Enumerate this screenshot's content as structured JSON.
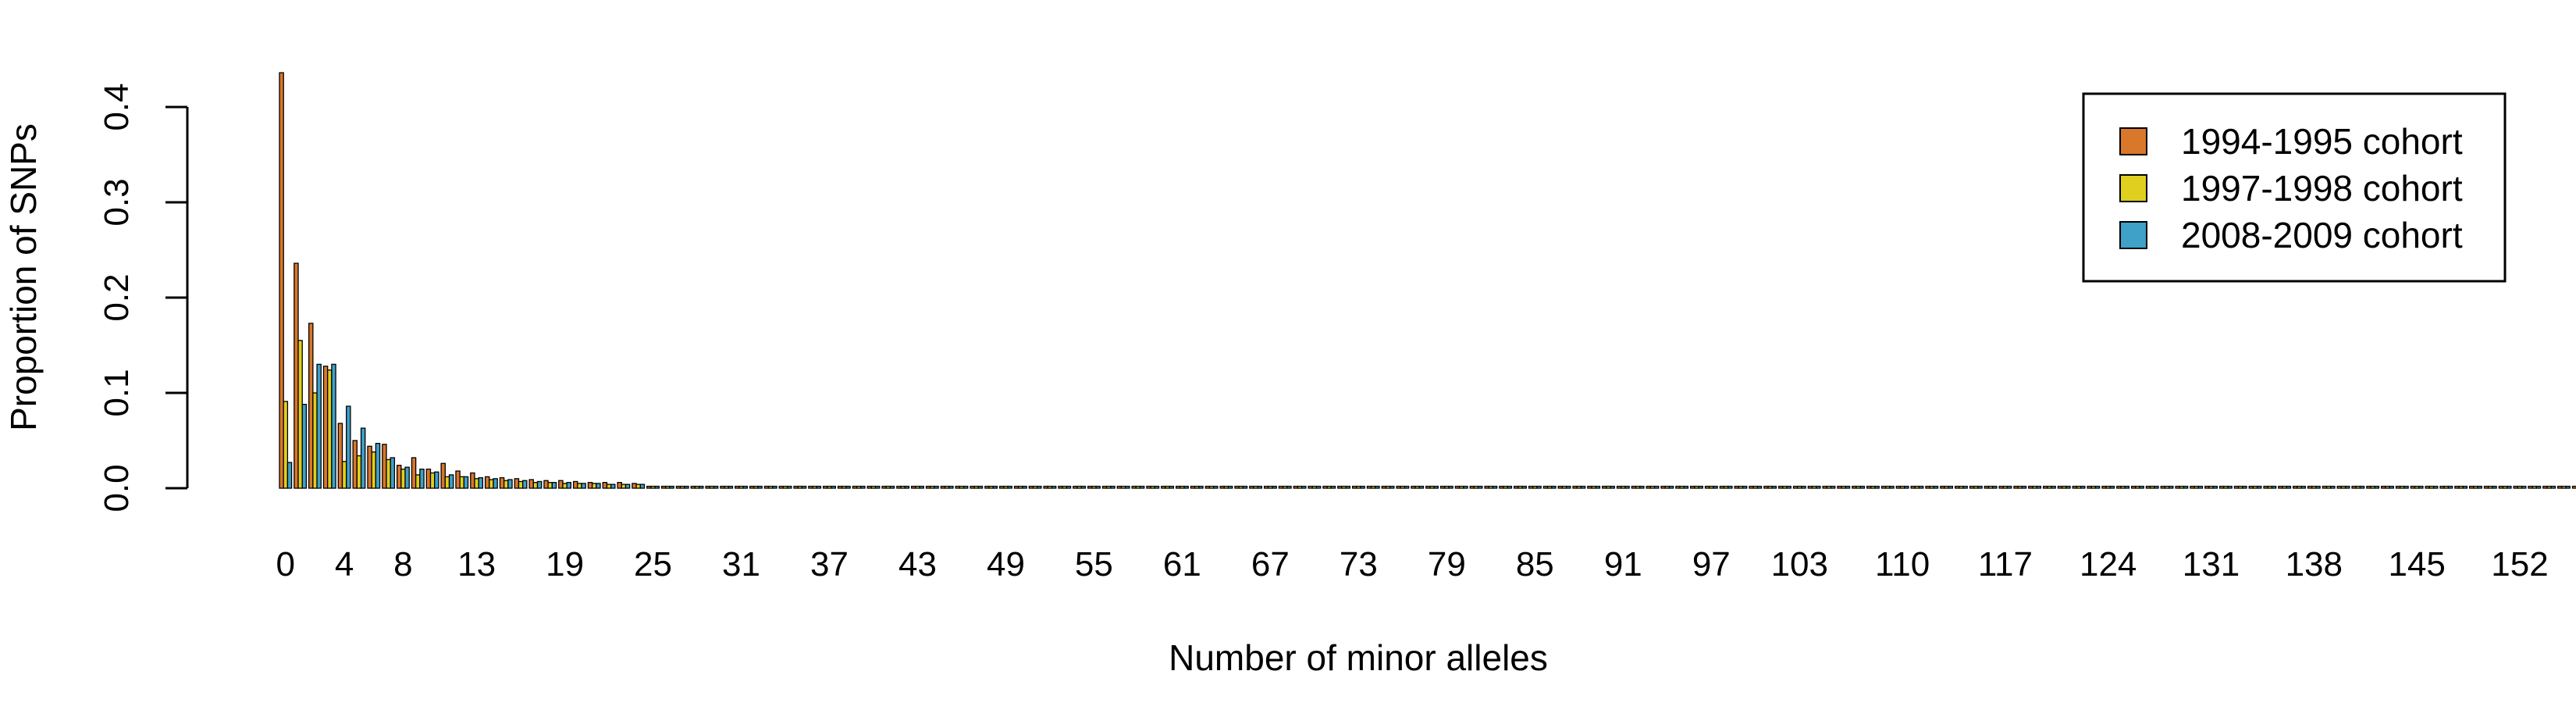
{
  "chart_data": {
    "type": "bar",
    "title": "",
    "xlabel": "Number of minor alleles",
    "ylabel": "Proportion of SNPs",
    "ylim": [
      0,
      0.44
    ],
    "yticks": [
      "0.0",
      "0.1",
      "0.2",
      "0.3",
      "0.4"
    ],
    "ytick_values": [
      0,
      0.1,
      0.2,
      0.3,
      0.4
    ],
    "xticks": [
      "0",
      "4",
      "8",
      "13",
      "19",
      "25",
      "31",
      "37",
      "43",
      "49",
      "55",
      "61",
      "67",
      "73",
      "79",
      "85",
      "91",
      "97",
      "103",
      "110",
      "117",
      "124",
      "131",
      "138",
      "145",
      "152"
    ],
    "xtick_categories": [
      0,
      4,
      8,
      13,
      19,
      25,
      31,
      37,
      43,
      49,
      55,
      61,
      67,
      73,
      79,
      85,
      91,
      97,
      103,
      110,
      117,
      124,
      131,
      138,
      145,
      152
    ],
    "category_count": 160,
    "grid": false,
    "legend_position": "top-right",
    "series": [
      {
        "name": "1994-1995 cohort",
        "color": "#D9772B",
        "values": [
          0.436,
          0.236,
          0.173,
          0.128,
          0.068,
          0.05,
          0.044,
          0.046,
          0.024,
          0.032,
          0.02,
          0.026,
          0.018,
          0.016,
          0.012,
          0.011,
          0.01,
          0.009,
          0.008,
          0.008,
          0.007,
          0.006,
          0.006,
          0.006,
          0.005
        ]
      },
      {
        "name": "1997-1998 cohort",
        "color": "#E0CF1E",
        "values": [
          0.091,
          0.155,
          0.1,
          0.124,
          0.028,
          0.034,
          0.038,
          0.03,
          0.02,
          0.014,
          0.016,
          0.012,
          0.012,
          0.01,
          0.009,
          0.008,
          0.007,
          0.006,
          0.006,
          0.005,
          0.005,
          0.005,
          0.004,
          0.004,
          0.004
        ]
      },
      {
        "name": "2008-2009 cohort",
        "color": "#3FA0C8",
        "values": [
          0.027,
          0.088,
          0.13,
          0.13,
          0.086,
          0.063,
          0.047,
          0.032,
          0.022,
          0.02,
          0.017,
          0.014,
          0.012,
          0.011,
          0.01,
          0.009,
          0.008,
          0.007,
          0.006,
          0.006,
          0.005,
          0.005,
          0.004,
          0.004,
          0.004
        ]
      }
    ],
    "tail_value": 0.002
  }
}
